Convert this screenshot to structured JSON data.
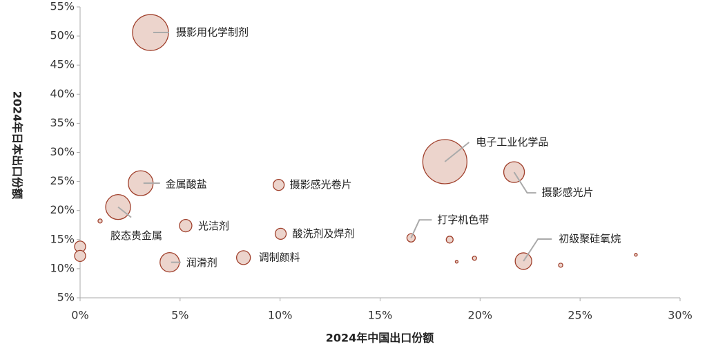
{
  "chart_data": {
    "type": "bubble",
    "x_label": "2024年中国出口份额",
    "y_label": "2024年日本出口份额",
    "fill": "#ecd4cc",
    "stroke": "#a0402c",
    "x": [
      3.52,
      18.24,
      21.7,
      3.03,
      9.93,
      1.9,
      5.28,
      10.03,
      16.55,
      22.17,
      4.48,
      8.17,
      0,
      0,
      1.0,
      18.48,
      18.83,
      19.72,
      24.03,
      27.79
    ],
    "y": [
      50.6,
      28.4,
      26.6,
      24.7,
      24.4,
      20.6,
      17.4,
      16.0,
      15.3,
      11.3,
      11.1,
      11.9,
      13.8,
      12.2,
      18.2,
      15.0,
      11.2,
      11.8,
      10.6,
      12.4
    ],
    "sizes": [
      676,
      1024,
      225,
      324,
      64,
      324,
      81,
      64,
      36,
      144,
      196,
      100,
      64,
      64,
      9,
      25,
      4,
      9,
      9,
      4
    ],
    "labels": [
      "摄影用化学制剂",
      "电子工业化学品",
      "摄影感光片",
      "金属酸盐",
      "摄影感光卷片",
      "胶态贵金属",
      "光洁剂",
      "酸洗剂及焊剂",
      "打字机色带",
      "初级聚硅氧烷",
      "润滑剂",
      "调制颜料",
      null,
      null,
      null,
      null,
      null,
      null,
      null,
      null
    ],
    "xlim": [
      0,
      30
    ],
    "ylim": [
      5,
      55
    ],
    "xticks": [
      {
        "value": 0,
        "label": "0%"
      },
      {
        "value": 5,
        "label": "5%"
      },
      {
        "value": 10,
        "label": "10%"
      },
      {
        "value": 15,
        "label": "15%"
      },
      {
        "value": 20,
        "label": "20%"
      },
      {
        "value": 25,
        "label": "25%"
      },
      {
        "value": 30,
        "label": "30%"
      }
    ],
    "yticks": [
      {
        "value": 5,
        "label": "5%"
      },
      {
        "value": 10,
        "label": "10%"
      },
      {
        "value": 15,
        "label": "15%"
      },
      {
        "value": 20,
        "label": "20%"
      },
      {
        "value": 25,
        "label": "25%"
      },
      {
        "value": 30,
        "label": "30%"
      },
      {
        "value": 35,
        "label": "35%"
      },
      {
        "value": 40,
        "label": "40%"
      },
      {
        "value": 45,
        "label": "45%"
      },
      {
        "value": 50,
        "label": "50%"
      },
      {
        "value": 55,
        "label": "55%"
      }
    ],
    "grid": false
  }
}
